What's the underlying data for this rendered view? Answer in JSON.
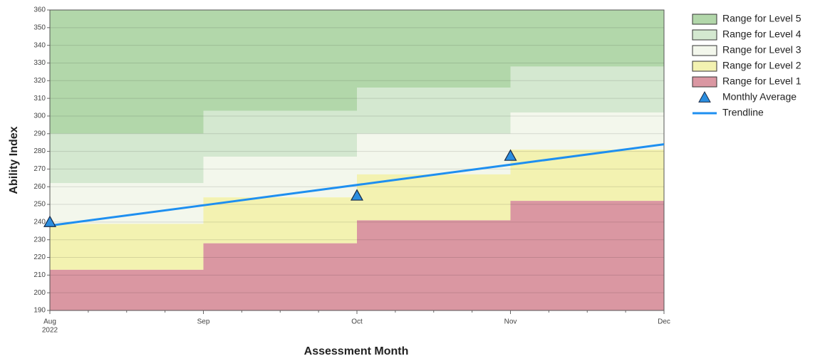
{
  "chart_data": {
    "type": "step_area_line",
    "xlabel": "Assessment Month",
    "ylabel": "Ability Index",
    "categories": [
      "Aug",
      "Sep",
      "Oct",
      "Nov",
      "Dec"
    ],
    "first_category_year": "2022",
    "ylim": [
      190,
      360
    ],
    "yticks": [
      190,
      200,
      210,
      220,
      230,
      240,
      250,
      260,
      270,
      280,
      290,
      300,
      310,
      320,
      330,
      340,
      350,
      360
    ],
    "grid": true,
    "legend": "right",
    "ranges": [
      {
        "name": "Range for Level 5",
        "color": "#b2d7aa",
        "values": [
          360,
          360,
          360,
          360
        ]
      },
      {
        "name": "Range for Level 4",
        "color": "#d4e8d0",
        "values": [
          290,
          303,
          316,
          328
        ]
      },
      {
        "name": "Range for Level 3",
        "color": "#f3f7ec",
        "values": [
          262,
          277,
          290,
          302
        ]
      },
      {
        "name": "Range for Level 2",
        "color": "#f3f2b1",
        "values": [
          239,
          254,
          267,
          281
        ]
      },
      {
        "name": "Range for Level 1",
        "color": "#da97a2",
        "values": [
          213,
          228,
          241,
          252
        ]
      }
    ],
    "points": {
      "name": "Monthly Average",
      "color": "#2b8ee0",
      "values": [
        240,
        null,
        255,
        277.5
      ]
    },
    "trend": {
      "name": "Trendline",
      "color": "#1e8ff0",
      "values": [
        238,
        249.5,
        261,
        272.5,
        284
      ]
    }
  }
}
